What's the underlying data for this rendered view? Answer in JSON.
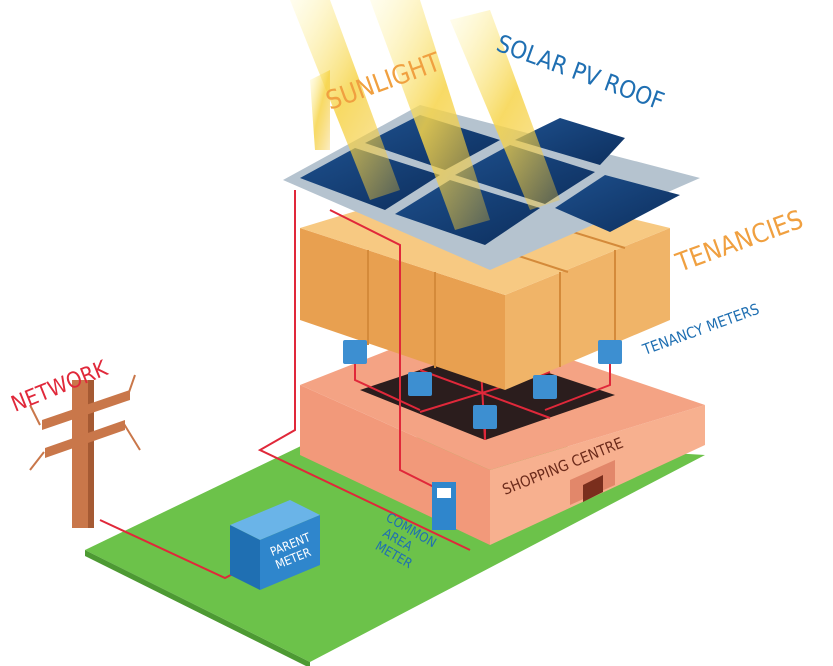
{
  "labels": {
    "sunlight": "SUNLIGHT",
    "solar_pv_roof": "SOLAR PV ROOF",
    "tenancies": "TENANCIES",
    "tenancy_meters": "TENANCY METERS",
    "network": "NETWORK",
    "shopping_centre": "SHOPPING CENTRE",
    "parent_meter": [
      "PARENT",
      "METER"
    ],
    "common_area_meter": [
      "COMMON",
      "AREA",
      "METER"
    ]
  }
}
